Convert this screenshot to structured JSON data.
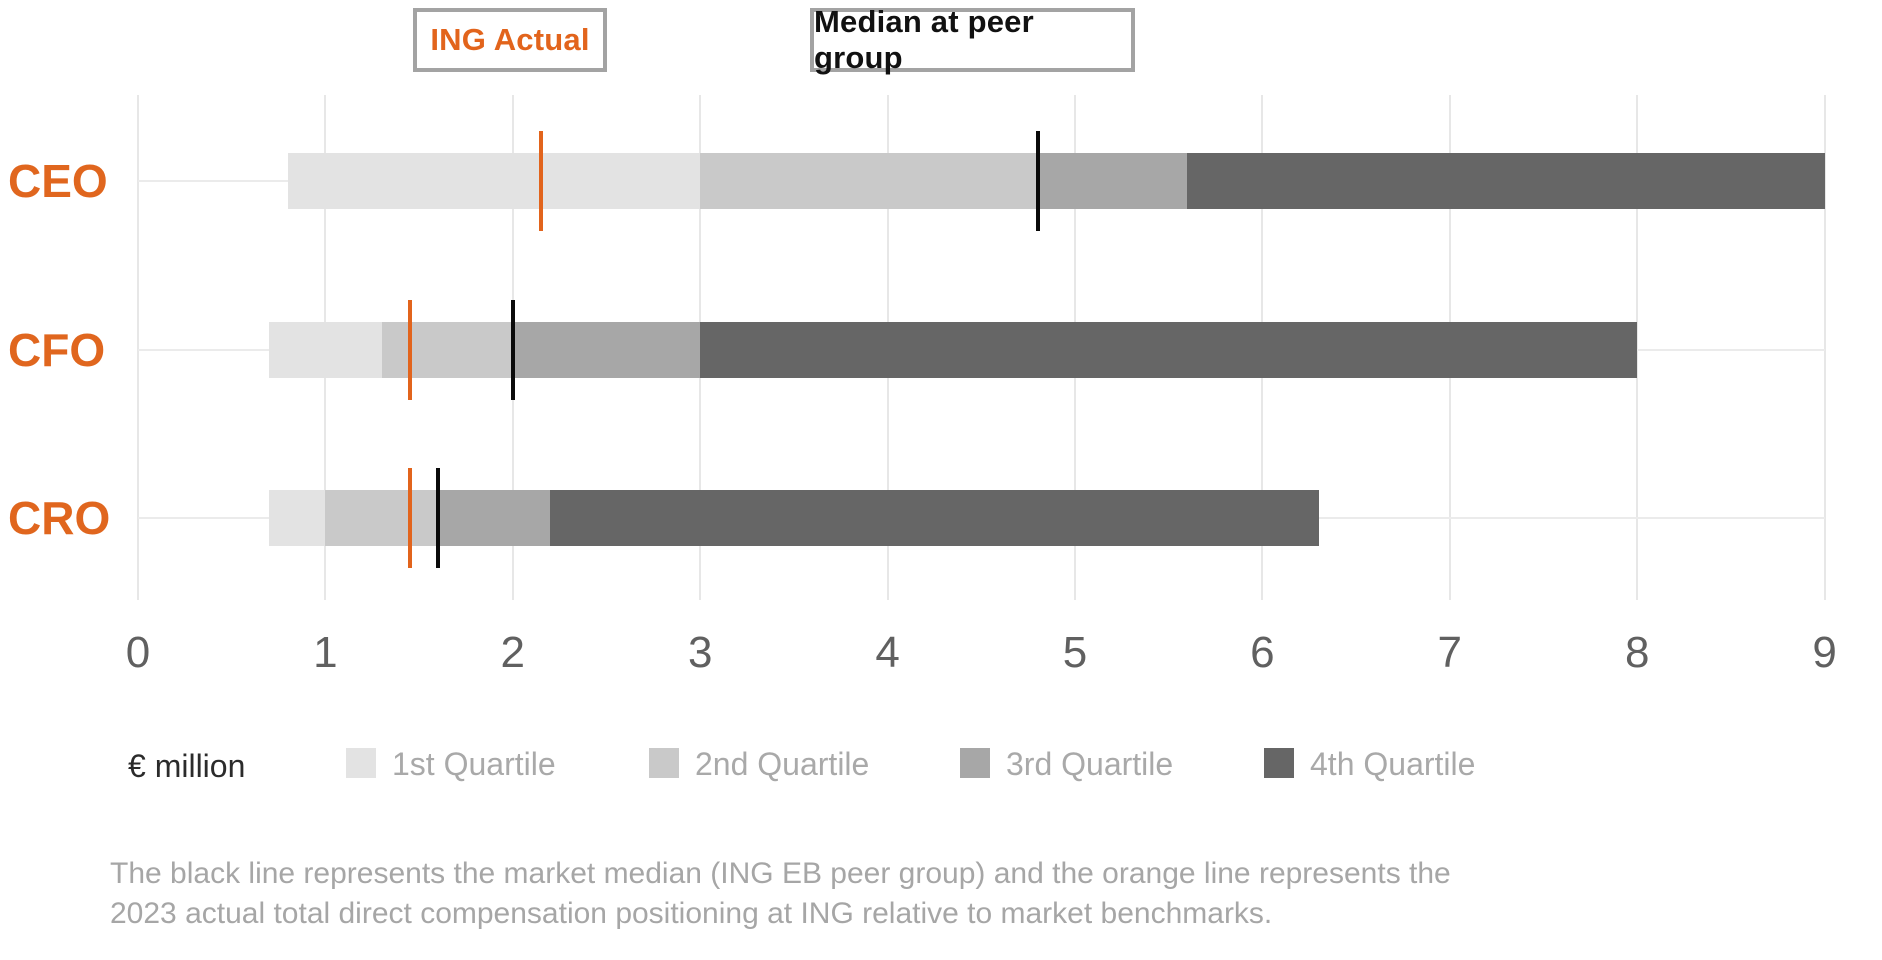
{
  "top_legend": {
    "items": [
      {
        "label": "ING Actual",
        "color": "#e2641c"
      },
      {
        "label": "Median at peer group",
        "color": "#111111"
      }
    ]
  },
  "axis": {
    "unit_label": "€ million",
    "ticks": [
      "0",
      "1",
      "2",
      "3",
      "4",
      "5",
      "6",
      "7",
      "8",
      "9"
    ]
  },
  "quartile_legend": {
    "items": [
      {
        "label": "1st Quartile",
        "color": "#e3e3e3"
      },
      {
        "label": "2nd Quartile",
        "color": "#c9c9c9"
      },
      {
        "label": "3rd Quartile",
        "color": "#a7a7a7"
      },
      {
        "label": "4th Quartile",
        "color": "#666666"
      }
    ]
  },
  "chart_data": {
    "type": "bar",
    "orientation": "horizontal",
    "categories": [
      "CEO",
      "CFO",
      "CRO"
    ],
    "category_label_color": "#e0661e",
    "series": [
      {
        "name": "1st Quartile",
        "color": "#e3e3e3",
        "ranges": [
          [
            0.8,
            3.0
          ],
          [
            0.7,
            1.3
          ],
          [
            0.7,
            1.0
          ]
        ]
      },
      {
        "name": "2nd Quartile",
        "color": "#c9c9c9",
        "ranges": [
          [
            3.0,
            4.8
          ],
          [
            1.3,
            2.0
          ],
          [
            1.0,
            1.6
          ]
        ]
      },
      {
        "name": "3rd Quartile",
        "color": "#a7a7a7",
        "ranges": [
          [
            4.8,
            5.6
          ],
          [
            2.0,
            3.0
          ],
          [
            1.6,
            2.2
          ]
        ]
      },
      {
        "name": "4th Quartile",
        "color": "#666666",
        "ranges": [
          [
            5.6,
            9.0
          ],
          [
            3.0,
            8.0
          ],
          [
            2.2,
            6.3
          ]
        ]
      }
    ],
    "markers": [
      {
        "name": "ING Actual",
        "color": "#e2641c",
        "values": [
          2.15,
          1.45,
          1.45
        ]
      },
      {
        "name": "Median at peer group",
        "color": "#0a0a0a",
        "values": [
          4.8,
          2.0,
          1.6
        ]
      }
    ],
    "xlabel": "€ million",
    "xlim": [
      0,
      9
    ],
    "xticks": [
      0,
      1,
      2,
      3,
      4,
      5,
      6,
      7,
      8,
      9
    ],
    "grid": true,
    "legend_position": "bottom"
  },
  "footnote": {
    "line1": "The black line represents the market median (ING EB peer group) and the orange line represents the",
    "line2": "2023 actual total direct compensation positioning at ING relative to market benchmarks."
  }
}
